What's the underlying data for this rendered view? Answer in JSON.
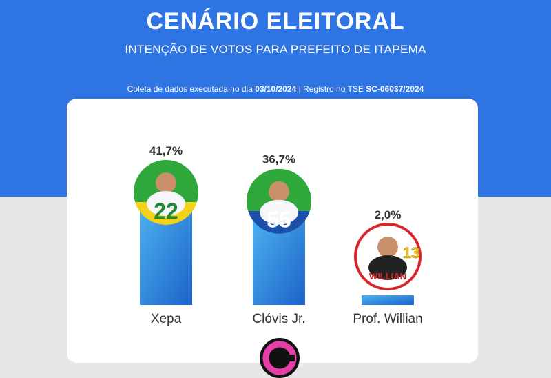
{
  "header": {
    "title": "CENÁRIO ELEITORAL",
    "subtitle": "INTENÇÃO DE VOTOS PARA PREFEITO DE ITAPEMA",
    "meta_prefix": "Coleta de dados executada no dia ",
    "meta_date": "03/10/2024",
    "meta_middle": " | Registro no TSE ",
    "meta_registry": "SC-06037/2024"
  },
  "colors": {
    "background_top": "#2f74e3",
    "background_bottom": "#e6e6e8",
    "bar_top": "#4db3ef",
    "bar_bottom": "#1c62c9",
    "value_label": "#333333",
    "category_label": "#333333"
  },
  "chart_data": {
    "type": "bar",
    "categories": [
      "Xepa",
      "Clóvis Jr.",
      "Prof. Willian"
    ],
    "values": [
      41.7,
      36.7,
      2.0
    ],
    "value_labels": [
      "41,7%",
      "36,7%",
      "2,0%"
    ],
    "candidate_numbers": [
      "22",
      "55",
      "13"
    ],
    "badge_text": [
      "",
      "",
      "WILLIAN"
    ],
    "badge_colors": [
      {
        "top": "#2ea83a",
        "bottom": "#f2d21b",
        "number": "#1f8a2f"
      },
      {
        "top": "#2ea83a",
        "bottom": "#1c4fa8",
        "number": "#ffffff"
      },
      {
        "top": "#ffffff",
        "bottom": "#ffffff",
        "number": "#e8c51d",
        "ring": "#d9242a"
      }
    ],
    "title": "",
    "xlabel": "",
    "ylabel": "",
    "grid": false,
    "legend": "none"
  }
}
